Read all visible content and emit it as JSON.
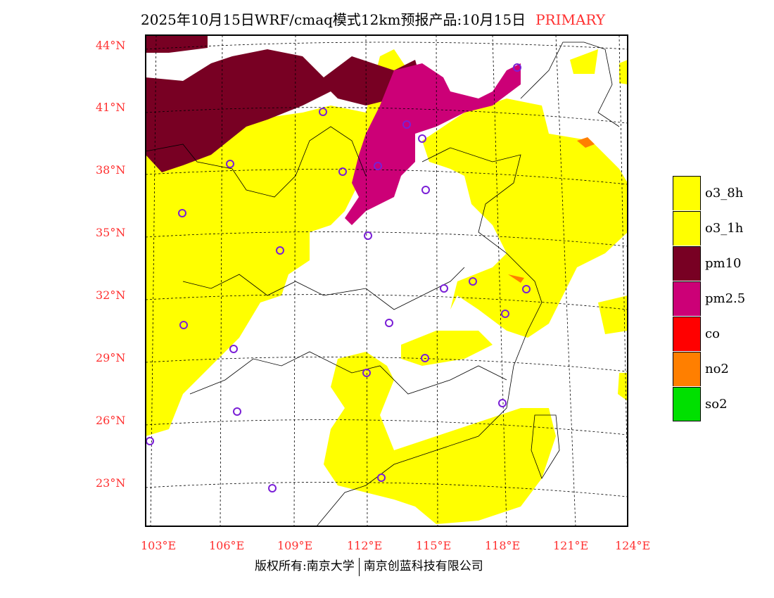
{
  "title": {
    "main": "2025年10月15日WRF/cmaq模式12km预报产品:10月15日",
    "tag": "PRIMARY"
  },
  "lat_labels": [
    "44°N",
    "41°N",
    "38°N",
    "35°N",
    "32°N",
    "29°N",
    "26°N",
    "23°N"
  ],
  "lon_labels": [
    "103°E",
    "106°E",
    "109°E",
    "112°E",
    "115°E",
    "118°E",
    "121°E",
    "124°E"
  ],
  "legend": [
    {
      "label": "o3_8h",
      "color": "#ffff00"
    },
    {
      "label": "o3_1h",
      "color": "#ffff00"
    },
    {
      "label": "pm10",
      "color": "#780023"
    },
    {
      "label": "pm2.5",
      "color": "#cc0077"
    },
    {
      "label": "co",
      "color": "#ff0000"
    },
    {
      "label": "no2",
      "color": "#ff7f00"
    },
    {
      "label": "so2",
      "color": "#00e000"
    }
  ],
  "footer": {
    "left": "版权所有:南京大学",
    "right": "南京创蓝科技有限公司"
  }
}
